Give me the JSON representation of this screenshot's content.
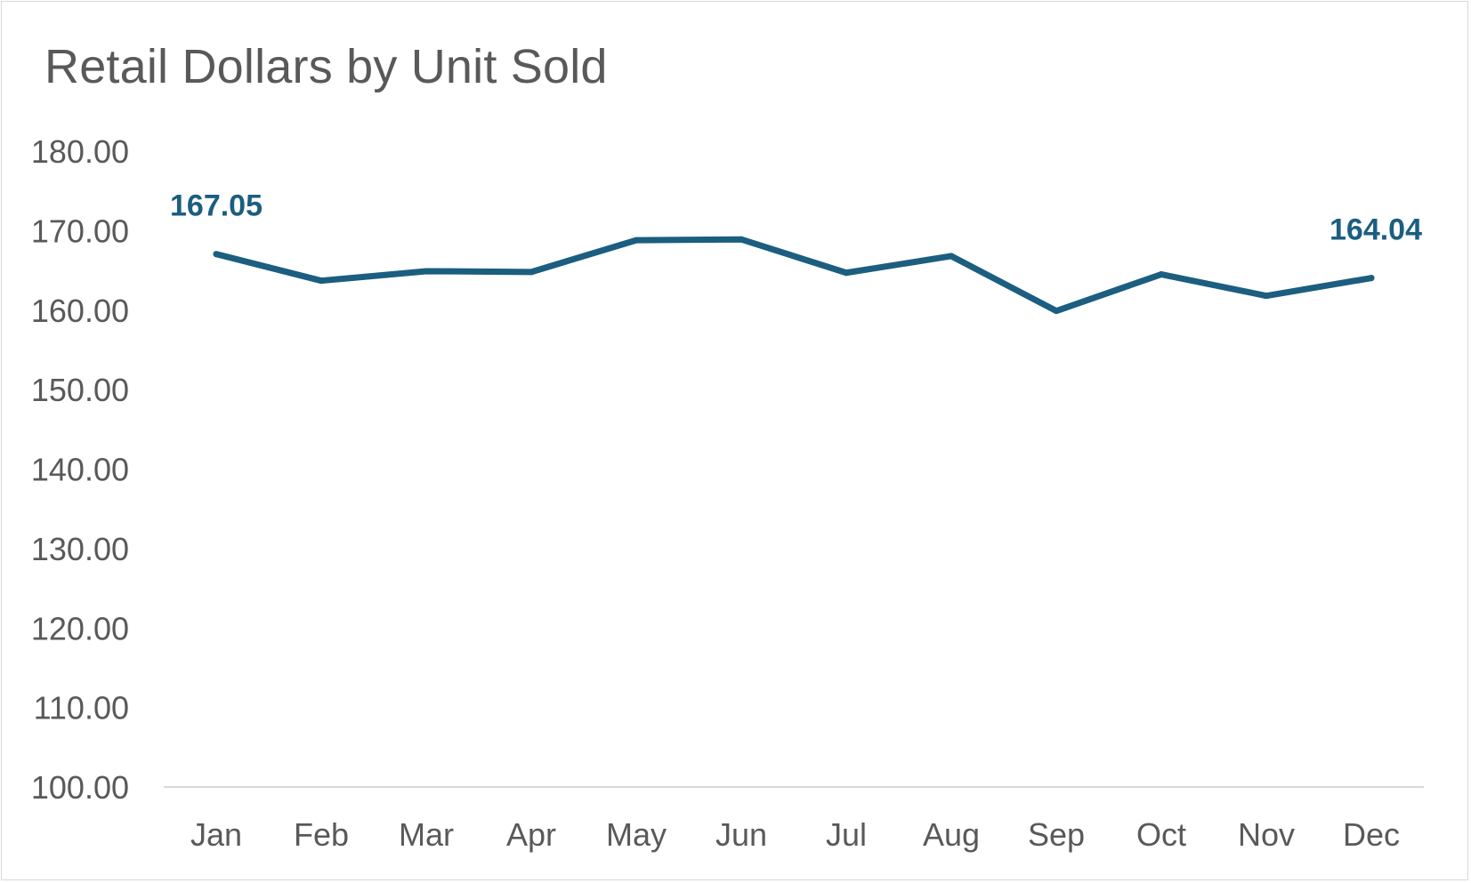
{
  "chart_data": {
    "type": "line",
    "title": "Retail Dollars by Unit Sold",
    "xlabel": "",
    "ylabel": "",
    "categories": [
      "Jan",
      "Feb",
      "Mar",
      "Apr",
      "May",
      "Jun",
      "Jul",
      "Aug",
      "Sep",
      "Oct",
      "Nov",
      "Dec"
    ],
    "y_ticks": [
      "100.00",
      "110.00",
      "120.00",
      "130.00",
      "140.00",
      "150.00",
      "160.00",
      "170.00",
      "180.00"
    ],
    "ylim": [
      100,
      180
    ],
    "grid": false,
    "legend": "none",
    "series": [
      {
        "values": [
          167.05,
          163.7,
          164.9,
          164.8,
          168.8,
          168.9,
          164.7,
          166.8,
          159.9,
          164.5,
          161.8,
          164.04
        ],
        "color": "#1b5e80"
      }
    ],
    "data_labels": [
      {
        "index": 0,
        "text": "167.05"
      },
      {
        "index": 11,
        "text": "164.04"
      }
    ],
    "colors": {
      "line": "#1b5e80",
      "text": "#595959",
      "axis": "#d9d9d9"
    }
  }
}
